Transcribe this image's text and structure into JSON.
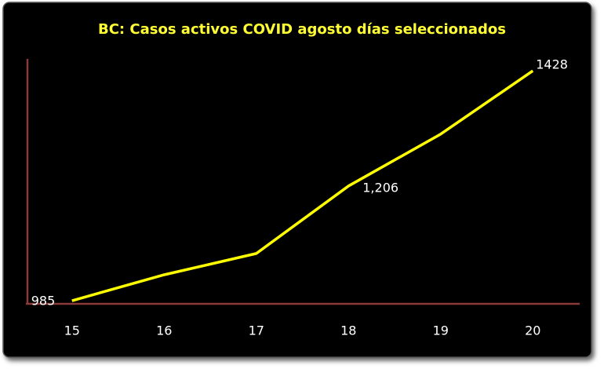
{
  "chart_data": {
    "type": "line",
    "title": "BC: Casos activos COVID agosto días seleccionados",
    "categories": [
      "15",
      "16",
      "17",
      "18",
      "19",
      "20"
    ],
    "values": [
      985,
      1035,
      1076,
      1206,
      1306,
      1428
    ],
    "value_labels": [
      "985",
      null,
      null,
      "1,206",
      null,
      "1428"
    ],
    "color": "#ffff00",
    "ylim": [
      979,
      1451
    ]
  }
}
